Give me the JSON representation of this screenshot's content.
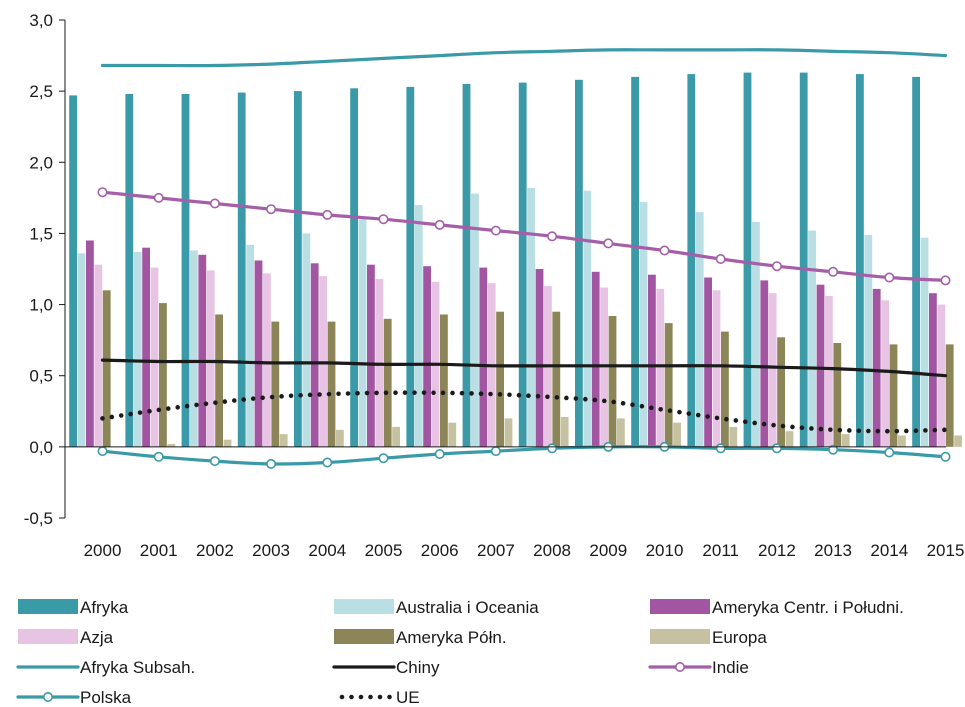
{
  "chart_data": {
    "type": "bar",
    "title": "",
    "xlabel": "",
    "ylabel": "",
    "ylim": [
      -0.5,
      3.0
    ],
    "y_ticks": [
      -0.5,
      0.0,
      0.5,
      1.0,
      1.5,
      2.0,
      2.5,
      3.0
    ],
    "y_tick_labels": [
      "-0,5",
      "0,0",
      "0,5",
      "1,0",
      "1,5",
      "2,0",
      "2,5",
      "3,0"
    ],
    "categories": [
      "2000",
      "2001",
      "2002",
      "2003",
      "2004",
      "2005",
      "2006",
      "2007",
      "2008",
      "2009",
      "2010",
      "2011",
      "2012",
      "2013",
      "2014",
      "2015"
    ],
    "grid": false,
    "legend_position": "bottom",
    "bar_series": [
      {
        "name": "Afryka",
        "color": "#3a9aa8",
        "values": [
          2.47,
          2.48,
          2.48,
          2.49,
          2.5,
          2.52,
          2.53,
          2.55,
          2.56,
          2.58,
          2.6,
          2.62,
          2.63,
          2.63,
          2.62,
          2.6
        ]
      },
      {
        "name": "Australia i Oceania",
        "color": "#b9dee3",
        "values": [
          1.36,
          1.37,
          1.38,
          1.42,
          1.5,
          1.6,
          1.7,
          1.78,
          1.82,
          1.8,
          1.72,
          1.65,
          1.58,
          1.52,
          1.49,
          1.47
        ]
      },
      {
        "name": "Ameryka Centr. i Południ.",
        "color": "#a256a2",
        "values": [
          1.45,
          1.4,
          1.35,
          1.31,
          1.29,
          1.28,
          1.27,
          1.26,
          1.25,
          1.23,
          1.21,
          1.19,
          1.17,
          1.14,
          1.11,
          1.08
        ]
      },
      {
        "name": "Azja",
        "color": "#e8c4e4",
        "values": [
          1.28,
          1.26,
          1.24,
          1.22,
          1.2,
          1.18,
          1.16,
          1.15,
          1.13,
          1.12,
          1.11,
          1.1,
          1.08,
          1.06,
          1.03,
          1.0
        ]
      },
      {
        "name": "Ameryka Półn.",
        "color": "#8b8558",
        "values": [
          1.1,
          1.01,
          0.93,
          0.88,
          0.88,
          0.9,
          0.93,
          0.95,
          0.95,
          0.92,
          0.87,
          0.81,
          0.77,
          0.73,
          0.72,
          0.72
        ]
      },
      {
        "name": "Europa",
        "color": "#c6c2a1",
        "values": [
          0.0,
          0.02,
          0.05,
          0.09,
          0.12,
          0.14,
          0.17,
          0.2,
          0.21,
          0.2,
          0.17,
          0.14,
          0.11,
          0.09,
          0.08,
          0.08
        ]
      }
    ],
    "line_series": [
      {
        "name": "Afryka Subsah.",
        "color": "#3a9aa8",
        "style": "solid",
        "marker": "none",
        "values": [
          2.68,
          2.68,
          2.68,
          2.69,
          2.71,
          2.73,
          2.75,
          2.77,
          2.78,
          2.79,
          2.79,
          2.79,
          2.79,
          2.78,
          2.77,
          2.75
        ]
      },
      {
        "name": "Chiny",
        "color": "#1a1a1a",
        "style": "solid",
        "marker": "none",
        "values": [
          0.61,
          0.6,
          0.6,
          0.59,
          0.59,
          0.58,
          0.58,
          0.57,
          0.57,
          0.57,
          0.57,
          0.57,
          0.56,
          0.55,
          0.53,
          0.5
        ]
      },
      {
        "name": "Indie",
        "color": "#a55fa8",
        "style": "solid",
        "marker": "circle",
        "values": [
          1.79,
          1.75,
          1.71,
          1.67,
          1.63,
          1.6,
          1.56,
          1.52,
          1.48,
          1.43,
          1.38,
          1.32,
          1.27,
          1.23,
          1.19,
          1.17
        ]
      },
      {
        "name": "Polska",
        "color": "#3a9aa8",
        "style": "solid",
        "marker": "circle",
        "values": [
          -0.03,
          -0.07,
          -0.1,
          -0.12,
          -0.11,
          -0.08,
          -0.05,
          -0.03,
          -0.01,
          0.0,
          0.0,
          -0.01,
          -0.01,
          -0.02,
          -0.04,
          -0.07
        ]
      },
      {
        "name": "UE",
        "color": "#1a1a1a",
        "style": "dotted",
        "marker": "none",
        "values": [
          0.2,
          0.26,
          0.31,
          0.35,
          0.37,
          0.38,
          0.38,
          0.37,
          0.35,
          0.32,
          0.26,
          0.2,
          0.15,
          0.12,
          0.11,
          0.12
        ]
      }
    ],
    "legend": [
      {
        "label": "Afryka",
        "kind": "bar",
        "color": "#3a9aa8"
      },
      {
        "label": "Australia i Oceania",
        "kind": "bar",
        "color": "#b9dee3"
      },
      {
        "label": "Ameryka Centr. i Południ.",
        "kind": "bar",
        "color": "#a256a2"
      },
      {
        "label": "Azja",
        "kind": "bar",
        "color": "#e8c4e4"
      },
      {
        "label": "Ameryka Półn.",
        "kind": "bar",
        "color": "#8b8558"
      },
      {
        "label": "Europa",
        "kind": "bar",
        "color": "#c6c2a1"
      },
      {
        "label": "Afryka Subsah.",
        "kind": "line",
        "color": "#3a9aa8",
        "style": "solid",
        "marker": "none"
      },
      {
        "label": "Chiny",
        "kind": "line",
        "color": "#1a1a1a",
        "style": "solid",
        "marker": "none"
      },
      {
        "label": "Indie",
        "kind": "line",
        "color": "#a55fa8",
        "style": "solid",
        "marker": "circle"
      },
      {
        "label": "Polska",
        "kind": "line",
        "color": "#3a9aa8",
        "style": "solid",
        "marker": "circle"
      },
      {
        "label": "UE",
        "kind": "line",
        "color": "#1a1a1a",
        "style": "dotted",
        "marker": "none"
      }
    ]
  }
}
